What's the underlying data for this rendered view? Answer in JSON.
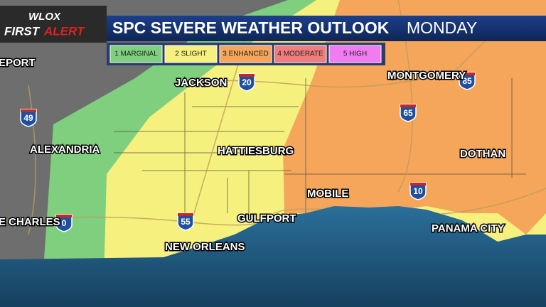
{
  "header": {
    "logo_top": "WLOX",
    "logo_first": "FIRST",
    "logo_alert": "ALERT",
    "title": "SPC SEVERE WEATHER OUTLOOK",
    "day": "MONDAY"
  },
  "legend": [
    {
      "label": "1 MARGINAL",
      "color": "#7fcf7f"
    },
    {
      "label": "2 SLIGHT",
      "color": "#f6f07e"
    },
    {
      "label": "3 ENHANCED",
      "color": "#f5a65b"
    },
    {
      "label": "4 MODERATE",
      "color": "#f07d7d"
    },
    {
      "label": "5 HIGH",
      "color": "#f07cf0"
    }
  ],
  "cities": [
    "EPORT",
    "JACKSON",
    "MONTGOMERY",
    "ALEXANDRIA",
    "HATTIESBURG",
    "DOTHAN",
    "MOBILE",
    "GULFPORT",
    "E CHARLES",
    "PANAMA CITY",
    "NEW ORLEANS"
  ],
  "shields": [
    "20",
    "85",
    "49",
    "65",
    "10",
    "55",
    "0"
  ]
}
